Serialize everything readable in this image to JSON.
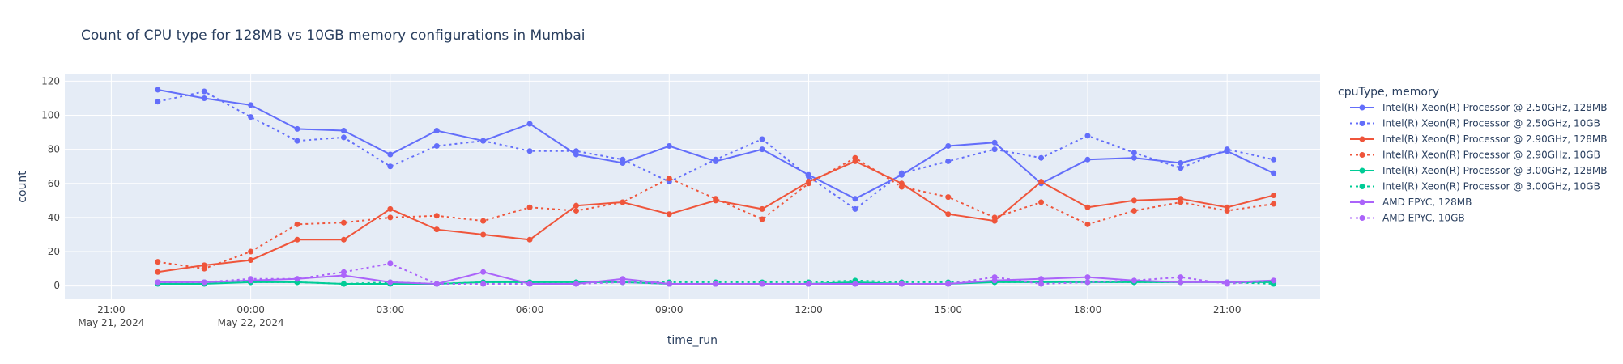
{
  "chart_data": {
    "type": "line",
    "title": "Count of CPU type for 128MB vs 10GB memory configurations in Mumbai",
    "xlabel": "time_run",
    "ylabel": "count",
    "ylim": [
      -8,
      124
    ],
    "xlim": [
      "2024-05-21 20:00",
      "2024-05-22 23:00"
    ],
    "grid": true,
    "legend": {
      "title": "cpuType, memory",
      "placement": "right"
    },
    "y_ticks": [
      "0",
      "20",
      "40",
      "60",
      "80",
      "100",
      "120"
    ],
    "x_ticks": [
      {
        "at": "2024-05-21 21:00",
        "label": "21:00",
        "sublabel": "May 21, 2024"
      },
      {
        "at": "2024-05-22 00:00",
        "label": "00:00",
        "sublabel": "May 22, 2024"
      },
      {
        "at": "2024-05-22 03:00",
        "label": "03:00",
        "sublabel": ""
      },
      {
        "at": "2024-05-22 06:00",
        "label": "06:00",
        "sublabel": ""
      },
      {
        "at": "2024-05-22 09:00",
        "label": "09:00",
        "sublabel": ""
      },
      {
        "at": "2024-05-22 12:00",
        "label": "12:00",
        "sublabel": ""
      },
      {
        "at": "2024-05-22 15:00",
        "label": "15:00",
        "sublabel": ""
      },
      {
        "at": "2024-05-22 18:00",
        "label": "18:00",
        "sublabel": ""
      },
      {
        "at": "2024-05-22 21:00",
        "label": "21:00",
        "sublabel": ""
      }
    ],
    "x": [
      "2024-05-21 22:00",
      "2024-05-21 23:00",
      "2024-05-22 00:00",
      "2024-05-22 01:00",
      "2024-05-22 02:00",
      "2024-05-22 03:00",
      "2024-05-22 04:00",
      "2024-05-22 05:00",
      "2024-05-22 06:00",
      "2024-05-22 07:00",
      "2024-05-22 08:00",
      "2024-05-22 09:00",
      "2024-05-22 10:00",
      "2024-05-22 11:00",
      "2024-05-22 12:00",
      "2024-05-22 13:00",
      "2024-05-22 14:00",
      "2024-05-22 15:00",
      "2024-05-22 16:00",
      "2024-05-22 17:00",
      "2024-05-22 18:00",
      "2024-05-22 19:00",
      "2024-05-22 20:00",
      "2024-05-22 21:00",
      "2024-05-22 22:00"
    ],
    "series": [
      {
        "name": "Intel(R) Xeon(R) Processor @ 2.50GHz, 128MB",
        "color": "#636efa",
        "dash": "solid",
        "values": [
          115,
          110,
          106,
          92,
          91,
          77,
          91,
          85,
          95,
          77,
          72,
          82,
          73,
          80,
          65,
          51,
          65,
          82,
          84,
          60,
          74,
          75,
          72,
          79,
          66
        ]
      },
      {
        "name": "Intel(R) Xeon(R) Processor @ 2.50GHz, 10GB",
        "color": "#636efa",
        "dash": "dot",
        "values": [
          108,
          114,
          99,
          85,
          87,
          70,
          82,
          85,
          79,
          79,
          74,
          61,
          74,
          86,
          64,
          45,
          66,
          73,
          80,
          75,
          88,
          78,
          69,
          80,
          74
        ]
      },
      {
        "name": "Intel(R) Xeon(R) Processor @ 2.90GHz, 128MB",
        "color": "#ef553b",
        "dash": "solid",
        "values": [
          8,
          12,
          15,
          27,
          27,
          45,
          33,
          30,
          27,
          47,
          49,
          42,
          50,
          45,
          61,
          73,
          60,
          42,
          38,
          61,
          46,
          50,
          51,
          46,
          53
        ]
      },
      {
        "name": "Intel(R) Xeon(R) Processor @ 2.90GHz, 10GB",
        "color": "#ef553b",
        "dash": "dot",
        "values": [
          14,
          10,
          20,
          36,
          37,
          40,
          41,
          38,
          46,
          44,
          49,
          63,
          51,
          39,
          60,
          75,
          58,
          52,
          40,
          49,
          36,
          44,
          49,
          44,
          48
        ]
      },
      {
        "name": "Intel(R) Xeon(R) Processor @ 3.00GHz, 128MB",
        "color": "#00cc96",
        "dash": "solid",
        "values": [
          1,
          1,
          2,
          2,
          1,
          1,
          1,
          2,
          2,
          2,
          2,
          1,
          1,
          1,
          1,
          2,
          1,
          1,
          2,
          2,
          2,
          2,
          2,
          2,
          2
        ]
      },
      {
        "name": "Intel(R) Xeon(R) Processor @ 3.00GHz, 10GB",
        "color": "#00cc96",
        "dash": "dot",
        "values": [
          2,
          2,
          2,
          2,
          1,
          2,
          1,
          2,
          2,
          2,
          2,
          2,
          2,
          2,
          2,
          3,
          2,
          2,
          2,
          2,
          2,
          2,
          2,
          2,
          1
        ]
      },
      {
        "name": "AMD EPYC, 128MB",
        "color": "#ab63fa",
        "dash": "solid",
        "values": [
          2,
          2,
          3,
          4,
          6,
          2,
          1,
          8,
          1,
          1,
          4,
          1,
          1,
          1,
          1,
          1,
          1,
          1,
          3,
          4,
          5,
          3,
          2,
          2,
          3
        ]
      },
      {
        "name": "AMD EPYC, 10GB",
        "color": "#ab63fa",
        "dash": "dot",
        "values": [
          2,
          2,
          4,
          4,
          8,
          13,
          1,
          1,
          1,
          1,
          2,
          1,
          1,
          1,
          1,
          1,
          1,
          1,
          5,
          1,
          2,
          3,
          5,
          1,
          3
        ]
      }
    ]
  }
}
